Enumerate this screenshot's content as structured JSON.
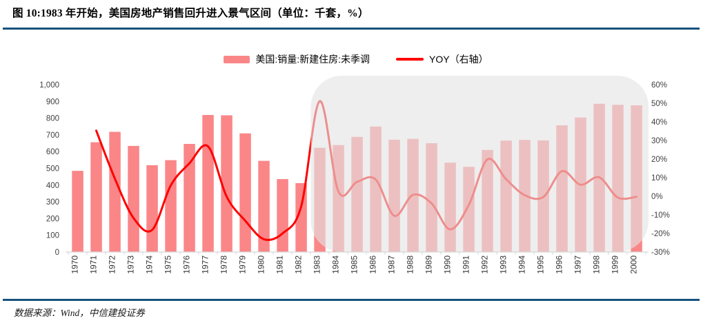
{
  "header": {
    "title": "图 10:1983 年开始，美国房地产销售回升进入景气区间（单位：千套，%）",
    "rule_color": "#17507C"
  },
  "legend": {
    "items": [
      {
        "label": "美国:销量:新建住房:未季调",
        "swatch": "bar",
        "color": "#FA8688"
      },
      {
        "label": "YOY（右轴）",
        "swatch": "line",
        "color": "#FE0000"
      }
    ]
  },
  "footer": {
    "source": "数据来源：Wind，中信建投证券"
  },
  "icons": {
    "bar_swatch": "bar-legend-swatch",
    "line_swatch": "line-legend-swatch"
  },
  "colors": {
    "bar": "#FA8688",
    "line": "#FE0000",
    "axis": "#D6D6D6",
    "tick_text": "#3F3F3F",
    "highlight": "#E3E3E3",
    "rule": "#17507C"
  },
  "chart_data": {
    "type": "bar",
    "subtype": "bar-plus-line-dual-axis",
    "title": "",
    "xlabel": "",
    "ylabel": "",
    "grid": false,
    "legend_position": "top",
    "categories": [
      "1970",
      "1971",
      "1972",
      "1973",
      "1974",
      "1975",
      "1976",
      "1977",
      "1978",
      "1979",
      "1980",
      "1981",
      "1982",
      "1983",
      "1984",
      "1985",
      "1986",
      "1987",
      "1988",
      "1989",
      "1990",
      "1991",
      "1992",
      "1993",
      "1994",
      "1995",
      "1996",
      "1997",
      "1998",
      "1999",
      "2000"
    ],
    "series": [
      {
        "name": "美国:销量:新建住房:未季调",
        "type": "bar",
        "yaxis": "left",
        "color": "#FA8688",
        "values": [
          485,
          656,
          718,
          634,
          519,
          549,
          646,
          819,
          817,
          709,
          545,
          436,
          412,
          623,
          639,
          688,
          750,
          671,
          676,
          650,
          534,
          509,
          610,
          666,
          670,
          667,
          757,
          804,
          886,
          880,
          877
        ]
      },
      {
        "name": "YOY（右轴）",
        "type": "line",
        "yaxis": "right",
        "color": "#FE0000",
        "values": [
          null,
          35.3,
          9.5,
          -11.7,
          -18.1,
          5.8,
          17.7,
          26.8,
          -0.2,
          -13.2,
          -23.1,
          -20.0,
          -5.5,
          51.2,
          2.6,
          7.7,
          9.0,
          -10.5,
          0.7,
          -3.8,
          -17.8,
          -4.7,
          19.8,
          9.2,
          0.6,
          -0.4,
          13.5,
          6.2,
          10.2,
          -0.7,
          -0.3
        ]
      }
    ],
    "left_axis": {
      "min": 0,
      "max": 1000,
      "step": 100,
      "tick_labels": [
        "0",
        "100",
        "200",
        "300",
        "400",
        "500",
        "600",
        "700",
        "800",
        "900",
        "1,000"
      ]
    },
    "right_axis": {
      "min": -30,
      "max": 60,
      "step": 10,
      "tick_labels": [
        "-30%",
        "-20%",
        "-10%",
        "0%",
        "10%",
        "20%",
        "30%",
        "40%",
        "50%",
        "60%"
      ]
    },
    "highlight_region": {
      "start_category": "1983",
      "end_category": "2000",
      "fill": "#E3E3E3",
      "opacity": 0.62
    }
  }
}
